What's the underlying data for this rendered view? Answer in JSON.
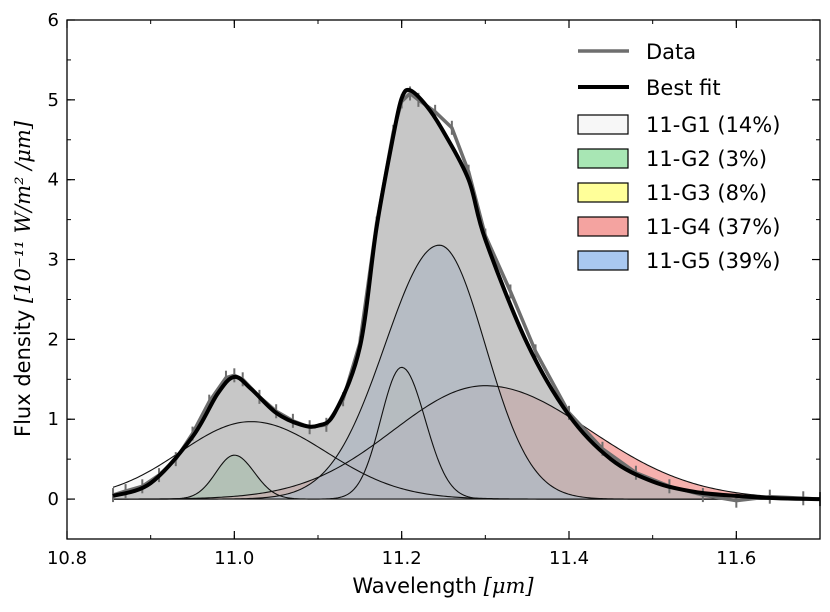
{
  "chart_data": {
    "type": "area",
    "title": "",
    "xlabel": {
      "prefix": "Wavelength ",
      "unit": "[μm]"
    },
    "ylabel": {
      "prefix": "Flux density ",
      "unit": "[10⁻¹¹ W/m² /μm]"
    },
    "xlim": [
      10.8,
      11.7
    ],
    "ylim": [
      -0.5,
      6
    ],
    "xticks": [
      "10.8",
      "11.0",
      "11.2",
      "11.4",
      "11.6"
    ],
    "yticks": [
      "0",
      "1",
      "2",
      "3",
      "4",
      "5",
      "6"
    ],
    "x_range": [
      10.855,
      11.7
    ],
    "legend_position": "top-right",
    "components": [
      {
        "name": "11-G1 (14%)",
        "color": "#f7f7f7",
        "center": 11.02,
        "amplitude": 0.97,
        "sigma_left": 0.085,
        "sigma_right": 0.09,
        "opacity": 0.8
      },
      {
        "name": "11-G2 (3%)",
        "color": "#a8e6b4",
        "center": 11.0,
        "amplitude": 0.55,
        "sigma_left": 0.022,
        "sigma_right": 0.024,
        "opacity": 0.9
      },
      {
        "name": "11-G3 (8%)",
        "color": "#ffff99",
        "center": 11.2,
        "amplitude": 1.65,
        "sigma_left": 0.025,
        "sigma_right": 0.028,
        "opacity": 0.9
      },
      {
        "name": "11-G4 (37%)",
        "color": "#f4a3a0",
        "center": 11.3,
        "amplitude": 1.42,
        "sigma_left": 0.11,
        "sigma_right": 0.125,
        "opacity": 0.85
      },
      {
        "name": "11-G5 (39%)",
        "color": "#a9c8f0",
        "center": 11.245,
        "amplitude": 3.18,
        "sigma_left": 0.065,
        "sigma_right": 0.055,
        "opacity": 0.8
      }
    ],
    "best_fit": {
      "name": "Best fit",
      "color": "#000000",
      "x": [
        10.855,
        10.9,
        10.95,
        10.98,
        11.0,
        11.02,
        11.05,
        11.08,
        11.1,
        11.12,
        11.15,
        11.17,
        11.19,
        11.2,
        11.21,
        11.23,
        11.25,
        11.28,
        11.3,
        11.35,
        11.4,
        11.45,
        11.5,
        11.55,
        11.6,
        11.65,
        11.7
      ],
      "y": [
        0.04,
        0.2,
        0.78,
        1.32,
        1.53,
        1.38,
        1.08,
        0.93,
        0.92,
        1.08,
        1.9,
        3.4,
        4.55,
        5.02,
        5.12,
        4.92,
        4.6,
        4.0,
        3.25,
        1.95,
        1.05,
        0.5,
        0.22,
        0.09,
        0.04,
        0.01,
        0.0
      ]
    },
    "data_series": {
      "name": "Data",
      "color": "#6e6e6e",
      "x": [
        10.855,
        10.87,
        10.89,
        10.91,
        10.93,
        10.95,
        10.97,
        10.99,
        11.0,
        11.01,
        11.03,
        11.05,
        11.07,
        11.09,
        11.11,
        11.13,
        11.15,
        11.17,
        11.19,
        11.2,
        11.21,
        11.22,
        11.24,
        11.26,
        11.28,
        11.3,
        11.33,
        11.36,
        11.4,
        11.44,
        11.48,
        11.52,
        11.56,
        11.6,
        11.64,
        11.68,
        11.7
      ],
      "y": [
        0.05,
        0.1,
        0.16,
        0.3,
        0.5,
        0.82,
        1.22,
        1.52,
        1.55,
        1.5,
        1.28,
        1.1,
        0.98,
        0.9,
        0.93,
        1.25,
        1.95,
        3.45,
        4.6,
        4.98,
        5.08,
        5.0,
        4.85,
        4.65,
        4.1,
        3.3,
        2.6,
        1.85,
        1.08,
        0.63,
        0.33,
        0.16,
        0.05,
        -0.02,
        0.03,
        0.01,
        0.0
      ]
    }
  }
}
